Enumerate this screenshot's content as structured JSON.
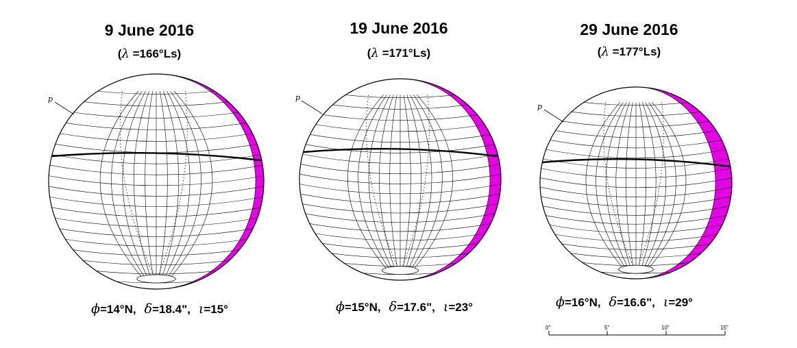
{
  "panels": [
    {
      "date": "9 June 2016",
      "ls_prefix": "(",
      "ls_symbol": "λ",
      "ls_value": "=166°Ls",
      "ls_suffix": ")",
      "pole_label": "p",
      "phi_symbol": "ϕ",
      "phi_value": "=14°N,",
      "delta_symbol": "δ",
      "delta_value": "=18.4\",",
      "iota_symbol": "ι",
      "iota_value": "=15°",
      "terminator_color": "#e600e6"
    },
    {
      "date": "19 June 2016",
      "ls_prefix": "(",
      "ls_symbol": "λ",
      "ls_value": "=171°Ls",
      "ls_suffix": ")",
      "pole_label": "p",
      "phi_symbol": "ϕ",
      "phi_value": "=15°N,",
      "delta_symbol": "δ",
      "delta_value": "=17.6\",",
      "iota_symbol": "ι",
      "iota_value": "=23°",
      "terminator_color": "#e600e6"
    },
    {
      "date": "29 June 2016",
      "ls_prefix": "(",
      "ls_symbol": "λ",
      "ls_value": "=177°Ls",
      "ls_suffix": ")",
      "pole_label": "p",
      "phi_symbol": "ϕ",
      "phi_value": "=16°N,",
      "delta_symbol": "δ",
      "delta_value": "=16.6\",",
      "iota_symbol": "ι",
      "iota_value": "=29°",
      "terminator_color": "#e600e6"
    }
  ],
  "scale_bar": {
    "ticks": [
      "0\"",
      "5\"",
      "10\"",
      "15\""
    ]
  }
}
